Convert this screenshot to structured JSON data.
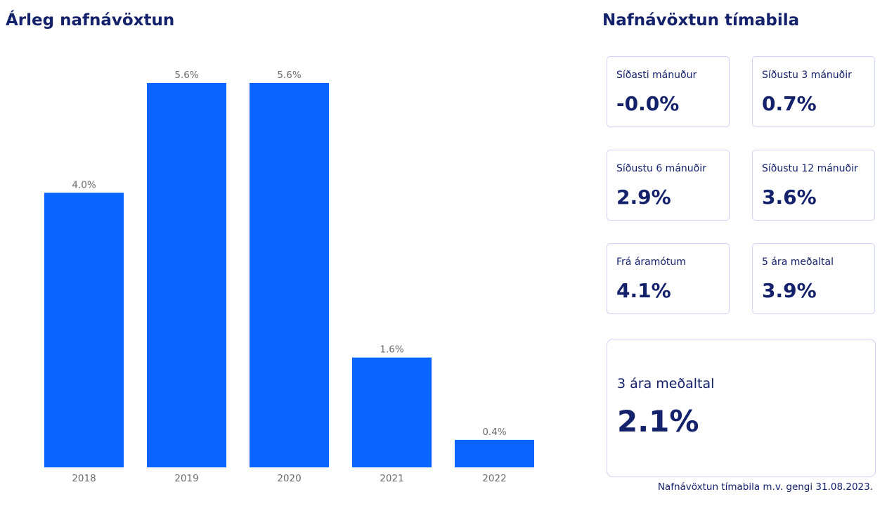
{
  "left": {
    "title": "Árleg nafnávöxtun"
  },
  "chart_data": {
    "type": "bar",
    "title": "Árleg nafnávöxtun",
    "categories": [
      "2018",
      "2019",
      "2020",
      "2021",
      "2022"
    ],
    "values": [
      4.0,
      5.6,
      5.6,
      1.6,
      0.4
    ],
    "data_labels": [
      "4.0%",
      "5.6%",
      "5.6%",
      "1.6%",
      "0.4%"
    ],
    "ylim": [
      0,
      5.6
    ],
    "xlabel": "",
    "ylabel": "",
    "grid": false,
    "legend": "none",
    "bar_color": "#0a64ff"
  },
  "panel": {
    "title": "Nafnávöxtun tímabila",
    "cards": [
      {
        "label": "Síðasti mánuður",
        "value": "-0.0%"
      },
      {
        "label": "Síðustu 3 mánuðir",
        "value": "0.7%"
      },
      {
        "label": "Síðustu 6 mánuðir",
        "value": "2.9%"
      },
      {
        "label": "Síðustu 12 mánuðir",
        "value": "3.6%"
      },
      {
        "label": "Frá áramótum",
        "value": "4.1%"
      },
      {
        "label": "5 ára meðaltal",
        "value": "3.9%"
      }
    ],
    "big_card": {
      "label": "3 ára meðaltal",
      "value": "2.1%"
    },
    "footnote": "Nafnávöxtun tímabila m.v. gengi 31.08.2023."
  },
  "colors": {
    "heading": "#14216b",
    "bar": "#0a64ff",
    "card_border": "#cfd3f5",
    "label_gray": "#6b6b6b"
  }
}
